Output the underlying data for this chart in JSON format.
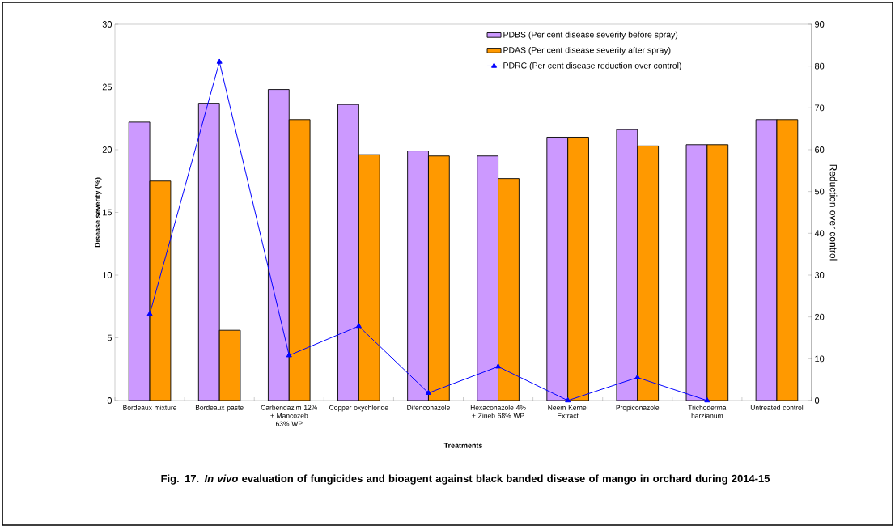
{
  "chart_data": {
    "type": "bar",
    "title": "Fig. 17. *In vivo* evaluation of fungicides and bioagent against black banded disease of mango in orchard during 2014-15",
    "xlabel": "Treatments",
    "ylabel": "Disease severity (%)",
    "y2label": "Reduction over control",
    "categories": [
      "Bordeaux mixture",
      "Bordeaux paste",
      "Carbendazim 12% + Mancozeb 63% WP",
      "Copper oxychloride",
      "Difenconazole",
      "Hexaconazole 4% + Zineb 68% WP",
      "Neem Kernel Extract",
      "Propiconazole",
      "Trichoderma harzianum",
      "Untreated control"
    ],
    "series": [
      {
        "name": "PDBS (Per cent disease severity before spray)",
        "color": "#cc99ff",
        "values": [
          22.2,
          23.7,
          24.8,
          23.6,
          19.9,
          19.5,
          21.0,
          21.6,
          20.4,
          22.4
        ]
      },
      {
        "name": "PDAS (Per cent disease severity after spray)",
        "color": "#ff9900",
        "values": [
          17.5,
          5.6,
          22.4,
          19.6,
          19.5,
          17.7,
          21.0,
          20.3,
          20.4,
          22.4
        ]
      },
      {
        "name": "PDRC (Per cent disease reduction over control)",
        "type": "line",
        "axis": "y2",
        "marker": "triangle",
        "color": "#0000ff",
        "values": [
          20.7,
          81,
          10.8,
          17.8,
          1.8,
          8.1,
          0,
          5.5,
          0,
          null
        ]
      }
    ],
    "ylim": [
      0,
      30
    ],
    "yticks": [
      0,
      5,
      10,
      15,
      20,
      25,
      30
    ],
    "y2lim": [
      0,
      90
    ],
    "y2ticks": [
      0,
      10,
      20,
      30,
      40,
      50,
      60,
      70,
      80,
      90
    ],
    "legend": "top right",
    "grid": false
  }
}
